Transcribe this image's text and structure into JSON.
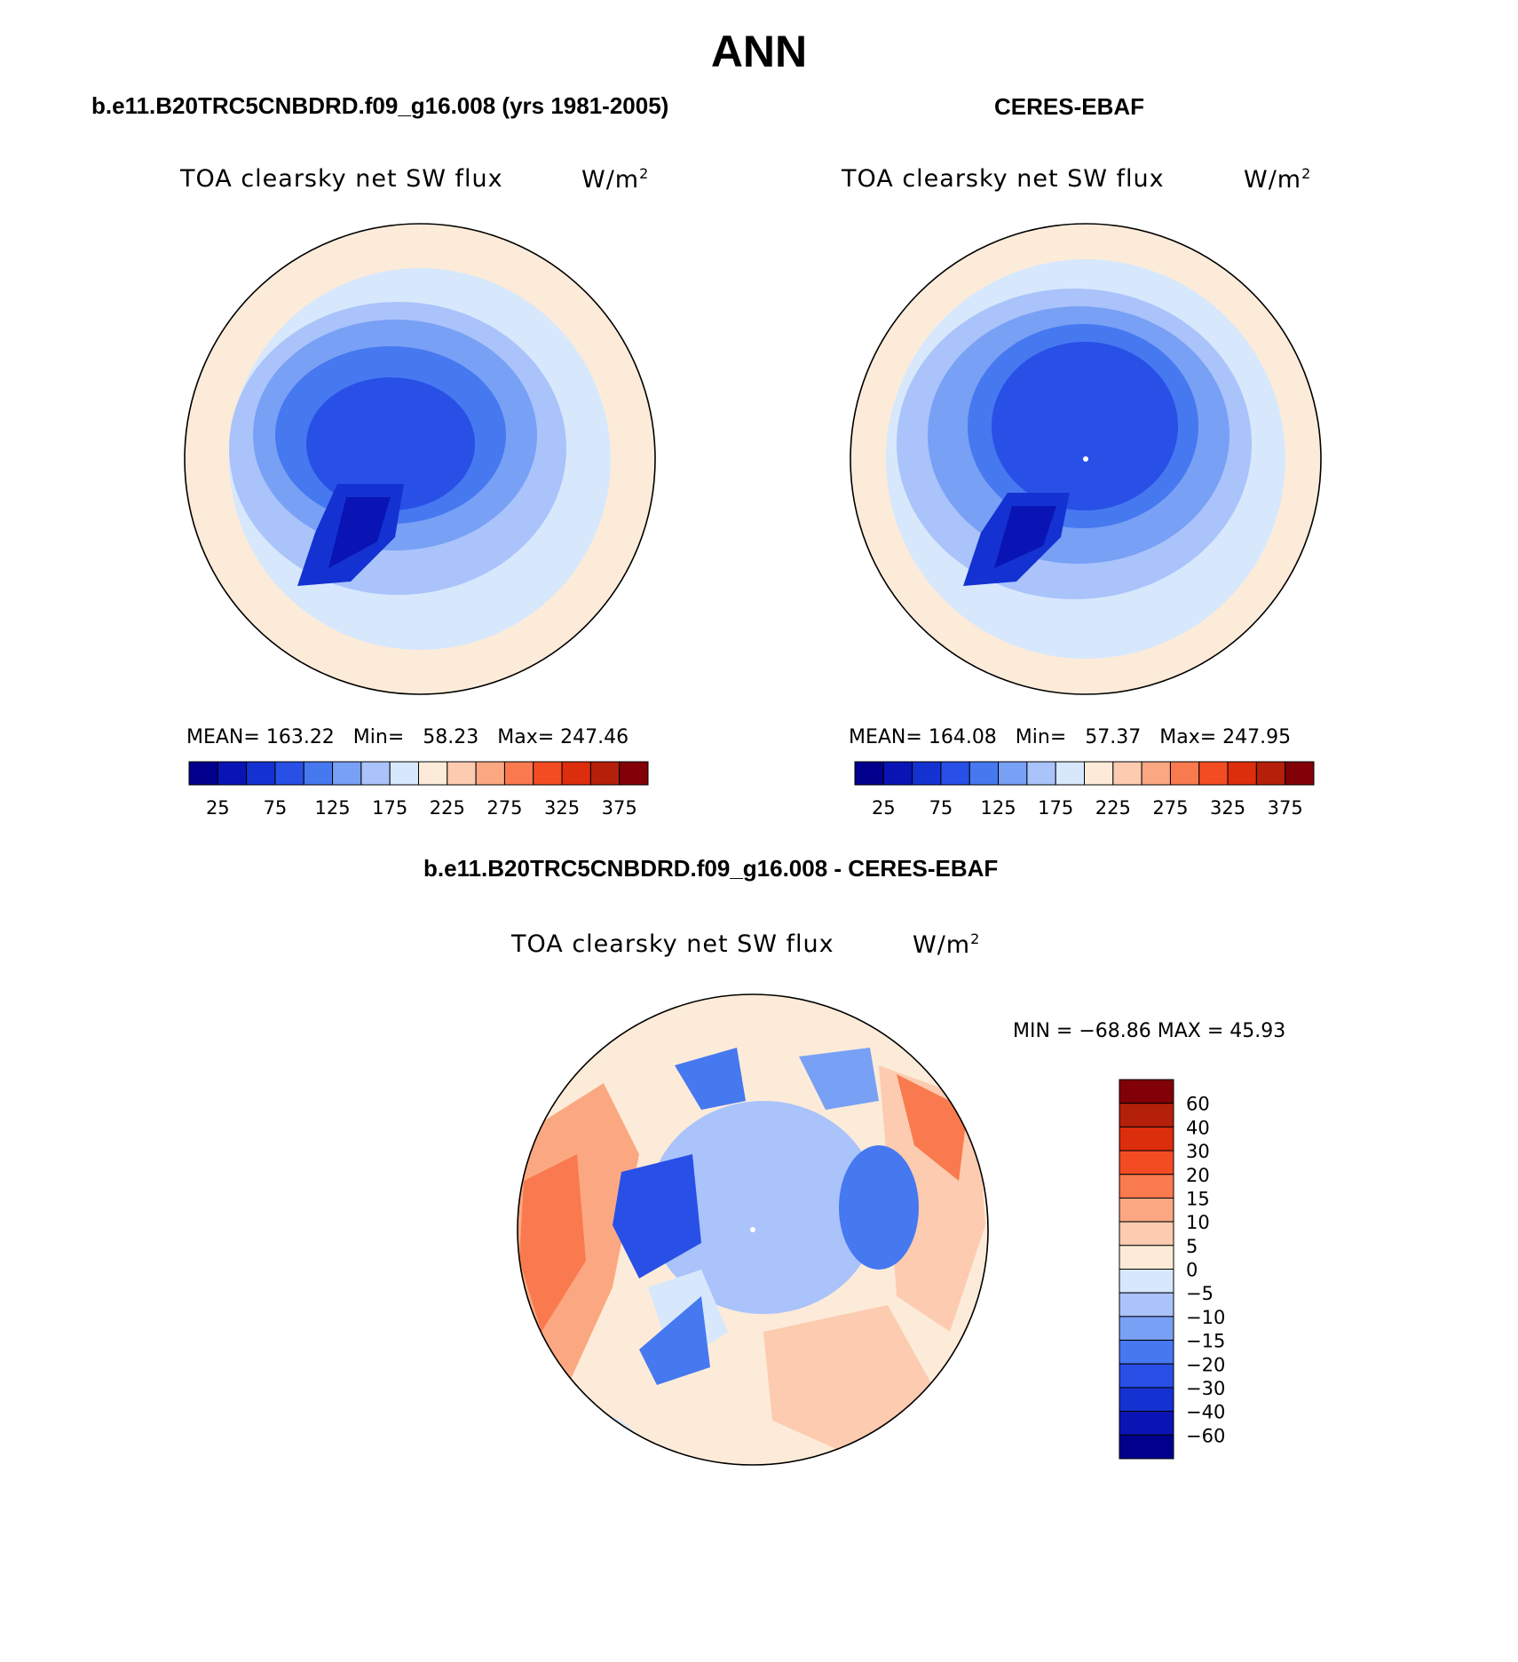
{
  "title": "ANN",
  "colors": {
    "abs_scale": [
      "#00008c",
      "#0a14b4",
      "#1432d2",
      "#2850e6",
      "#4678f0",
      "#78a0f5",
      "#aac3fa",
      "#d7e8fc",
      "#fdebd9",
      "#fccbb0",
      "#fba882",
      "#f97a4e",
      "#f34c23",
      "#dc2d0c",
      "#b4200a",
      "#820008"
    ],
    "diff_scale": [
      "#00008c",
      "#0a14b4",
      "#1432d2",
      "#2850e6",
      "#4678f0",
      "#78a0f5",
      "#aac3fa",
      "#d7e8fc",
      "#fdebd9",
      "#fccbb0",
      "#fba882",
      "#f97a4e",
      "#f34c23",
      "#dc2d0c",
      "#b4200a",
      "#820008"
    ]
  },
  "panels": {
    "model": {
      "header": "b.e11.B20TRC5CNBDRD.f09_g16.008 (yrs 1981-2005)",
      "variable": "TOA clearsky net SW flux",
      "units": "W/m",
      "units_sup": "2",
      "stats": {
        "mean_label": "MEAN=",
        "mean": "163.22",
        "min_label": "Min=",
        "min": "58.23",
        "max_label": "Max=",
        "max": "247.46"
      }
    },
    "obs": {
      "header": "CERES-EBAF",
      "variable": "TOA clearsky net SW flux",
      "units": "W/m",
      "units_sup": "2",
      "stats": {
        "mean_label": "MEAN=",
        "mean": "164.08",
        "min_label": "Min=",
        "min": "57.37",
        "max_label": "Max=",
        "max": "247.95"
      }
    },
    "diff": {
      "header": "b.e11.B20TRC5CNBDRD.f09_g16.008 - CERES-EBAF",
      "variable": "TOA clearsky net SW flux",
      "units": "W/m",
      "units_sup": "2",
      "minmax": "MIN = −68.86 MAX =   45.93"
    }
  },
  "colorbar_abs": {
    "labels": [
      "25",
      "75",
      "125",
      "175",
      "225",
      "275",
      "325",
      "375"
    ]
  },
  "colorbar_diff": {
    "labels": [
      "60",
      "40",
      "30",
      "20",
      "15",
      "10",
      "5",
      "0",
      "−5",
      "−10",
      "−15",
      "−20",
      "−30",
      "−40",
      "−60"
    ]
  }
}
